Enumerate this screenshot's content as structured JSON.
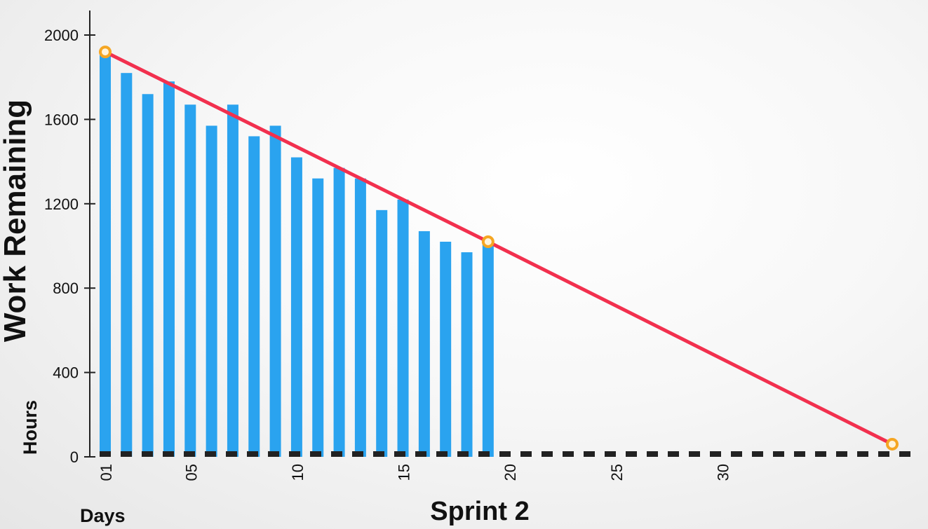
{
  "chart_data": {
    "type": "bar",
    "ylabel": "Work Remaining",
    "yunit_label": "Hours",
    "xunit_label": "Days",
    "xlabel": "Sprint 2",
    "ylim": [
      0,
      2000
    ],
    "yticks": [
      0,
      400,
      800,
      1200,
      1600,
      2000
    ],
    "yticklabels": [
      "0",
      "400",
      "800",
      "1200",
      "1600",
      "2000"
    ],
    "xlim": [
      1,
      38
    ],
    "xticks": [
      1,
      5,
      10,
      15,
      20,
      25,
      30
    ],
    "xticklabels": [
      "01",
      "05",
      "10",
      "15",
      "20",
      "25",
      "30"
    ],
    "bars": {
      "x": [
        1,
        2,
        3,
        4,
        5,
        6,
        7,
        8,
        9,
        10,
        11,
        12,
        13,
        14,
        15,
        16,
        17,
        18,
        19
      ],
      "values": [
        1920,
        1820,
        1720,
        1780,
        1670,
        1570,
        1670,
        1520,
        1570,
        1420,
        1320,
        1370,
        1320,
        1170,
        1220,
        1070,
        1020,
        970,
        1020
      ],
      "color": "#2aa3ef"
    },
    "ideal_line": {
      "color": "#f2304e",
      "points": [
        {
          "x": 1,
          "y": 1920
        },
        {
          "x": 19,
          "y": 1020
        },
        {
          "x": 38,
          "y": 60
        }
      ],
      "marker_color": "#f5a623"
    },
    "baseline_color": "#222222",
    "grid": false,
    "legend": "none"
  }
}
